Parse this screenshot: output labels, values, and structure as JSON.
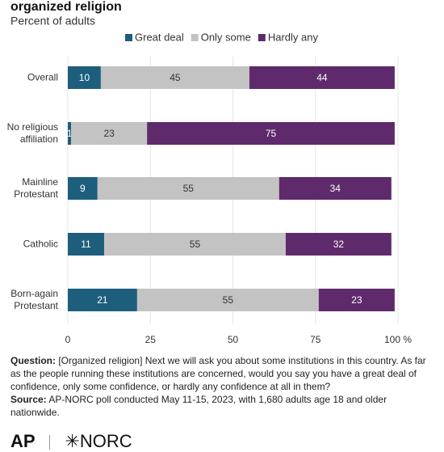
{
  "chart_data": {
    "type": "stacked_bar_horizontal",
    "title": "organized religion",
    "subtitle": "Percent of adults",
    "categories": [
      "Overall",
      "No religious affiliation",
      "Mainline Protestant",
      "Catholic",
      "Born-again Protestant"
    ],
    "series": [
      {
        "name": "Great deal",
        "color": "#1d5e7c",
        "values": [
          10,
          1,
          9,
          11,
          21
        ]
      },
      {
        "name": "Only some",
        "color": "#c3c3c3",
        "values": [
          45,
          23,
          55,
          55,
          55
        ]
      },
      {
        "name": "Hardly any",
        "color": "#5f2a6b",
        "values": [
          44,
          75,
          34,
          32,
          23
        ]
      }
    ],
    "xlim": [
      0,
      100
    ],
    "xticks": [
      0,
      25,
      50,
      75,
      {
        "value": 100,
        "label": "100 %"
      }
    ],
    "grid": true,
    "legend": "top"
  },
  "notes": {
    "question_label": "Question:",
    "question": "[Organized religion] Next we will ask you about some institutions in this country. As far as the people running these institutions are concerned, would you say you have a great deal of confidence, only some confidence, or hardly any confidence at all in them?",
    "source_label": "Source:",
    "source": "AP-NORC poll conducted May 11-15, 2023, with 1,680 adults age 18 and older nationwide."
  },
  "logos": [
    "AP",
    "NORC"
  ]
}
